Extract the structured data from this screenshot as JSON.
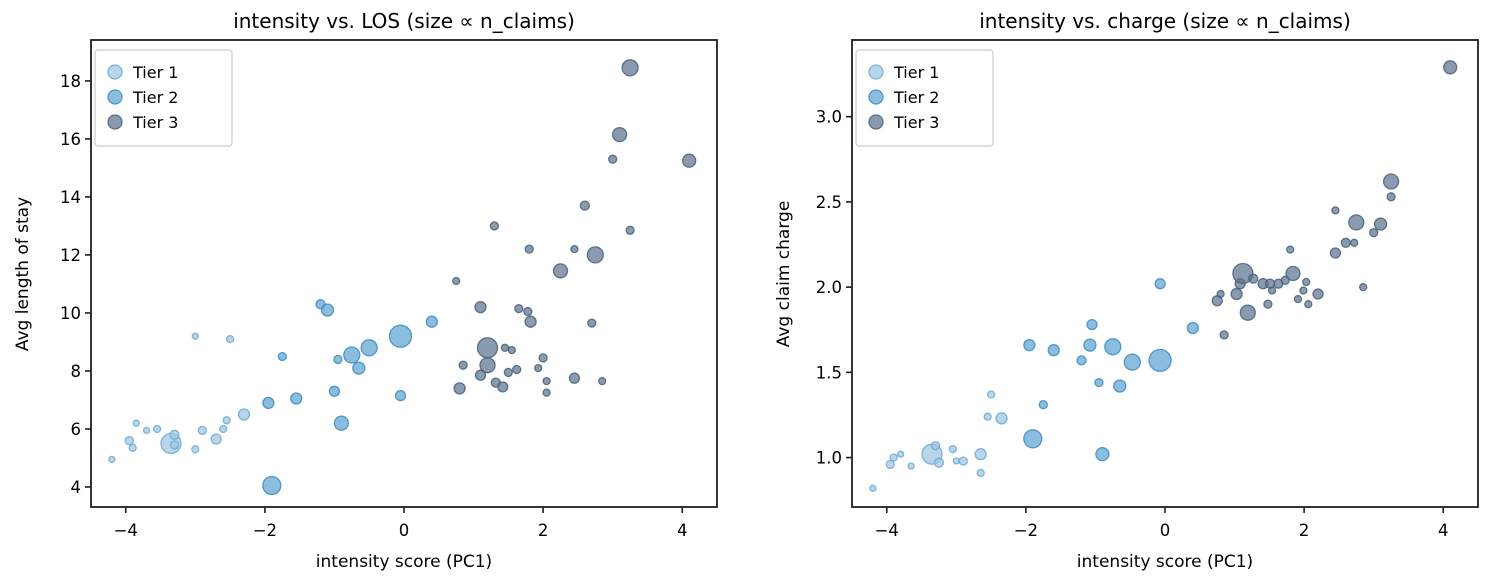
{
  "figure": {
    "background": "#ffffff",
    "text_color": "#000000",
    "spine_color": "#1f1f1f"
  },
  "legend": {
    "items": [
      {
        "label": "Tier 1",
        "tier": "tier1"
      },
      {
        "label": "Tier 2",
        "tier": "tier2"
      },
      {
        "label": "Tier 3",
        "tier": "tier3"
      }
    ]
  },
  "tiers": {
    "tier1": {
      "fill": "#9dc6e0",
      "stroke": "#6fa8d2"
    },
    "tier2": {
      "fill": "#5ea3d2",
      "stroke": "#3d8bc4"
    },
    "tier3": {
      "fill": "#5d7590",
      "stroke": "#48607a"
    }
  },
  "chart_data": [
    {
      "type": "scatter",
      "title": "intensity vs. LOS (size ∝ n_claims)",
      "xlabel": "intensity score (PC1)",
      "ylabel": "Avg length of stay",
      "xlim": [
        -4.5,
        4.5
      ],
      "ylim": [
        3.31,
        19.41
      ],
      "grid": false,
      "legend_position": "upper left",
      "xticks": [
        {
          "v": -4,
          "label": "−4"
        },
        {
          "v": -2,
          "label": "−2"
        },
        {
          "v": 0,
          "label": "0"
        },
        {
          "v": 2,
          "label": "2"
        },
        {
          "v": 4,
          "label": "4"
        }
      ],
      "yticks": [
        {
          "v": 4,
          "label": "4"
        },
        {
          "v": 6,
          "label": "6"
        },
        {
          "v": 8,
          "label": "8"
        },
        {
          "v": 10,
          "label": "10"
        },
        {
          "v": 12,
          "label": "12"
        },
        {
          "v": 14,
          "label": "14"
        },
        {
          "v": 16,
          "label": "16"
        },
        {
          "v": 18,
          "label": "18"
        }
      ],
      "series": [
        {
          "name": "Tier 1",
          "tier": "tier1",
          "points": [
            [
              -4.2,
              4.95,
              3
            ],
            [
              -3.95,
              5.6,
              4
            ],
            [
              -3.9,
              5.35,
              3.5
            ],
            [
              -3.85,
              6.2,
              3
            ],
            [
              -3.7,
              5.95,
              3
            ],
            [
              -3.55,
              6.0,
              3.5
            ],
            [
              -3.35,
              5.5,
              10
            ],
            [
              -3.3,
              5.45,
              4
            ],
            [
              -3.3,
              5.8,
              4.5
            ],
            [
              -3.0,
              5.3,
              3.5
            ],
            [
              -3.0,
              9.2,
              3
            ],
            [
              -2.9,
              5.95,
              4
            ],
            [
              -2.7,
              5.65,
              5
            ],
            [
              -2.6,
              6.0,
              3.5
            ],
            [
              -2.55,
              6.3,
              3.5
            ],
            [
              -2.5,
              9.1,
              3.5
            ],
            [
              -2.3,
              6.5,
              5.5
            ]
          ]
        },
        {
          "name": "Tier 2",
          "tier": "tier2",
          "points": [
            [
              -1.95,
              6.9,
              5.5
            ],
            [
              -1.9,
              4.05,
              9
            ],
            [
              -1.75,
              8.5,
              4
            ],
            [
              -1.55,
              7.05,
              5.5
            ],
            [
              -1.2,
              10.3,
              4.5
            ],
            [
              -1.1,
              10.1,
              6
            ],
            [
              -1.0,
              7.3,
              5
            ],
            [
              -0.95,
              8.4,
              4
            ],
            [
              -0.9,
              6.2,
              7
            ],
            [
              -0.75,
              8.55,
              8
            ],
            [
              -0.65,
              8.1,
              6
            ],
            [
              -0.5,
              8.8,
              8
            ],
            [
              -0.05,
              9.2,
              11
            ],
            [
              -0.05,
              7.15,
              5
            ],
            [
              0.4,
              9.7,
              5.5
            ]
          ]
        },
        {
          "name": "Tier 3",
          "tier": "tier3",
          "points": [
            [
              0.75,
              11.1,
              3.5
            ],
            [
              0.8,
              7.4,
              5.5
            ],
            [
              0.85,
              8.2,
              4
            ],
            [
              1.1,
              10.2,
              5.5
            ],
            [
              1.1,
              7.85,
              5
            ],
            [
              1.2,
              8.8,
              10
            ],
            [
              1.2,
              8.2,
              7.5
            ],
            [
              1.3,
              13.0,
              4
            ],
            [
              1.32,
              7.6,
              4.5
            ],
            [
              1.42,
              7.45,
              5
            ],
            [
              1.45,
              8.8,
              3.5
            ],
            [
              1.55,
              8.72,
              3.5
            ],
            [
              1.5,
              7.95,
              4
            ],
            [
              1.62,
              8.05,
              4
            ],
            [
              1.65,
              10.15,
              4
            ],
            [
              1.78,
              10.05,
              4
            ],
            [
              1.8,
              12.2,
              4
            ],
            [
              1.82,
              9.7,
              5.5
            ],
            [
              1.93,
              8.1,
              3.5
            ],
            [
              2.0,
              8.45,
              4
            ],
            [
              2.05,
              7.65,
              3.5
            ],
            [
              2.05,
              7.25,
              3.5
            ],
            [
              2.25,
              11.45,
              7
            ],
            [
              2.45,
              12.2,
              3.5
            ],
            [
              2.45,
              7.75,
              5
            ],
            [
              2.6,
              13.7,
              4.5
            ],
            [
              2.7,
              9.65,
              4
            ],
            [
              2.75,
              12.0,
              8
            ],
            [
              2.85,
              7.65,
              3.5
            ],
            [
              3.0,
              15.3,
              4
            ],
            [
              3.1,
              16.15,
              7
            ],
            [
              3.25,
              18.45,
              8
            ],
            [
              3.25,
              12.85,
              4
            ],
            [
              4.1,
              15.25,
              6.5
            ]
          ]
        }
      ]
    },
    {
      "type": "scatter",
      "title": "intensity vs. charge (size ∝ n_claims)",
      "xlabel": "intensity score (PC1)",
      "ylabel": "Avg claim charge",
      "xlim": [
        -4.5,
        4.5
      ],
      "ylim": [
        0.71,
        3.45
      ],
      "grid": false,
      "legend_position": "upper left",
      "xticks": [
        {
          "v": -4,
          "label": "−4"
        },
        {
          "v": -2,
          "label": "−2"
        },
        {
          "v": 0,
          "label": "0"
        },
        {
          "v": 2,
          "label": "2"
        },
        {
          "v": 4,
          "label": "4"
        }
      ],
      "yticks": [
        {
          "v": 1.0,
          "label": "1.0"
        },
        {
          "v": 1.5,
          "label": "1.5"
        },
        {
          "v": 2.0,
          "label": "2.0"
        },
        {
          "v": 2.5,
          "label": "2.5"
        },
        {
          "v": 3.0,
          "label": "3.0"
        }
      ],
      "series": [
        {
          "name": "Tier 1",
          "tier": "tier1",
          "points": [
            [
              -4.2,
              0.82,
              3
            ],
            [
              -3.95,
              0.96,
              4
            ],
            [
              -3.9,
              1.0,
              3.5
            ],
            [
              -3.8,
              1.02,
              3
            ],
            [
              -3.65,
              0.95,
              3
            ],
            [
              -3.35,
              1.02,
              10
            ],
            [
              -3.3,
              1.07,
              4
            ],
            [
              -3.25,
              0.97,
              4.5
            ],
            [
              -3.05,
              1.05,
              3.5
            ],
            [
              -3.0,
              0.98,
              3
            ],
            [
              -2.9,
              0.98,
              4
            ],
            [
              -2.65,
              1.02,
              5.5
            ],
            [
              -2.65,
              0.91,
              3.5
            ],
            [
              -2.55,
              1.24,
              3.5
            ],
            [
              -2.5,
              1.37,
              3.5
            ],
            [
              -2.35,
              1.23,
              5.5
            ]
          ]
        },
        {
          "name": "Tier 2",
          "tier": "tier2",
          "points": [
            [
              -1.95,
              1.66,
              5.5
            ],
            [
              -1.9,
              1.11,
              9
            ],
            [
              -1.75,
              1.31,
              4
            ],
            [
              -1.6,
              1.63,
              5.5
            ],
            [
              -1.2,
              1.57,
              4.5
            ],
            [
              -1.08,
              1.66,
              6
            ],
            [
              -1.05,
              1.78,
              5
            ],
            [
              -0.95,
              1.44,
              4
            ],
            [
              -0.9,
              1.02,
              6.5
            ],
            [
              -0.75,
              1.65,
              8
            ],
            [
              -0.65,
              1.42,
              6
            ],
            [
              -0.47,
              1.56,
              8
            ],
            [
              -0.07,
              1.57,
              11
            ],
            [
              -0.07,
              2.02,
              5
            ],
            [
              0.4,
              1.76,
              5.5
            ]
          ]
        },
        {
          "name": "Tier 3",
          "tier": "tier3",
          "points": [
            [
              0.75,
              1.92,
              5
            ],
            [
              0.8,
              1.96,
              3.5
            ],
            [
              0.85,
              1.72,
              4
            ],
            [
              1.03,
              1.96,
              5.5
            ],
            [
              1.08,
              2.02,
              5
            ],
            [
              1.12,
              2.08,
              10
            ],
            [
              1.19,
              1.85,
              7.5
            ],
            [
              1.27,
              2.05,
              4.5
            ],
            [
              1.41,
              2.02,
              5
            ],
            [
              1.48,
              1.9,
              4
            ],
            [
              1.51,
              2.02,
              4.5
            ],
            [
              1.54,
              1.98,
              3.5
            ],
            [
              1.63,
              2.02,
              4.5
            ],
            [
              1.73,
              2.04,
              4
            ],
            [
              1.8,
              2.22,
              3.5
            ],
            [
              1.84,
              2.08,
              7
            ],
            [
              1.91,
              1.93,
              3.5
            ],
            [
              1.99,
              1.98,
              3.5
            ],
            [
              2.03,
              2.03,
              3.5
            ],
            [
              2.06,
              1.9,
              3.5
            ],
            [
              2.2,
              1.96,
              5
            ],
            [
              2.45,
              2.2,
              5
            ],
            [
              2.45,
              2.45,
              3.5
            ],
            [
              2.6,
              2.26,
              4.5
            ],
            [
              2.72,
              2.26,
              3.5
            ],
            [
              2.75,
              2.38,
              7.5
            ],
            [
              2.85,
              2.0,
              3.5
            ],
            [
              3.0,
              2.32,
              4
            ],
            [
              3.1,
              2.37,
              6
            ],
            [
              3.25,
              2.53,
              4
            ],
            [
              3.25,
              2.62,
              7.5
            ],
            [
              4.1,
              3.29,
              6.5
            ]
          ]
        }
      ]
    }
  ]
}
